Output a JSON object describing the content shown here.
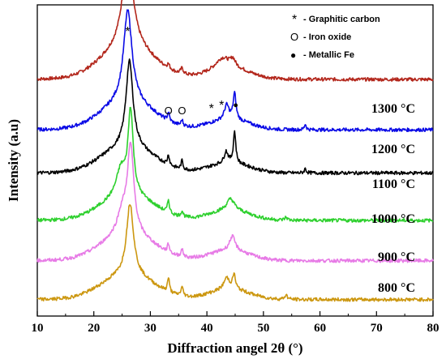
{
  "chart_data": {
    "type": "line",
    "xlabel": "Diffraction angel 2θ (°)",
    "ylabel": "Intensity (a.u)",
    "xlim": [
      10,
      80
    ],
    "xticks": [
      10,
      20,
      30,
      40,
      50,
      60,
      70,
      80
    ],
    "legend_position": "top-right",
    "legend": [
      {
        "symbol": "*",
        "label": "- Graphitic carbon"
      },
      {
        "symbol": "O",
        "label": "- Iron oxide"
      },
      {
        "symbol": "●",
        "label": "- Metallic Fe"
      }
    ],
    "series": [
      {
        "label": "1300 °C",
        "color": "#b3271c",
        "baseline": 0.78,
        "bulge": 0.11,
        "peaks": [
          [
            26.0,
            0.32,
            1.1
          ],
          [
            33.2,
            0.015,
            0.25
          ],
          [
            35.6,
            0.02,
            0.3
          ],
          [
            42.8,
            0.04,
            1.6
          ],
          [
            44.6,
            0.025,
            0.5
          ]
        ]
      },
      {
        "label": "1200 °C",
        "color": "#0b0be6",
        "baseline": 0.605,
        "bulge": 0.095,
        "peaks": [
          [
            26.0,
            0.32,
            0.9
          ],
          [
            33.2,
            0.03,
            0.2
          ],
          [
            35.6,
            0.02,
            0.2
          ],
          [
            43.5,
            0.05,
            0.5
          ],
          [
            44.9,
            0.09,
            0.3
          ],
          [
            57.4,
            0.02,
            0.2
          ]
        ]
      },
      {
        "label": "1100 °C",
        "color": "#000000",
        "baseline": 0.455,
        "bulge": 0.09,
        "peaks": [
          [
            26.3,
            0.3,
            0.75
          ],
          [
            33.2,
            0.035,
            0.2
          ],
          [
            35.6,
            0.03,
            0.2
          ],
          [
            43.4,
            0.04,
            0.4
          ],
          [
            44.9,
            0.11,
            0.25
          ],
          [
            57.4,
            0.015,
            0.2
          ]
        ]
      },
      {
        "label": "1000 °C",
        "color": "#2ed02e",
        "baseline": 0.29,
        "bulge": 0.085,
        "peaks": [
          [
            26.5,
            0.29,
            0.55
          ],
          [
            24.8,
            0.09,
            1.0
          ],
          [
            33.2,
            0.045,
            0.2
          ],
          [
            35.6,
            0.02,
            0.25
          ],
          [
            44.2,
            0.04,
            0.8
          ],
          [
            54.0,
            0.01,
            0.3
          ]
        ]
      },
      {
        "label": "900 °C",
        "color": "#e77be6",
        "baseline": 0.15,
        "bulge": 0.09,
        "peaks": [
          [
            26.5,
            0.3,
            0.7
          ],
          [
            25.0,
            0.07,
            1.0
          ],
          [
            33.2,
            0.03,
            0.2
          ],
          [
            35.6,
            0.025,
            0.25
          ],
          [
            44.5,
            0.05,
            0.6
          ]
        ]
      },
      {
        "label": "800 °C",
        "color": "#cc9710",
        "baseline": 0.015,
        "bulge": 0.085,
        "peaks": [
          [
            26.4,
            0.25,
            0.75
          ],
          [
            33.2,
            0.05,
            0.2
          ],
          [
            35.6,
            0.03,
            0.25
          ],
          [
            43.5,
            0.04,
            0.6
          ],
          [
            44.8,
            0.05,
            0.3
          ],
          [
            54.0,
            0.015,
            0.3
          ]
        ]
      }
    ],
    "annotations": [
      {
        "symbol": "*",
        "x": 26.0
      },
      {
        "symbol": "O",
        "x": 33.2
      },
      {
        "symbol": "O",
        "x": 35.6
      },
      {
        "symbol": "*",
        "x": 40.8
      },
      {
        "symbol": "*",
        "x": 42.6
      },
      {
        "symbol": "●",
        "x": 45.1
      }
    ]
  }
}
